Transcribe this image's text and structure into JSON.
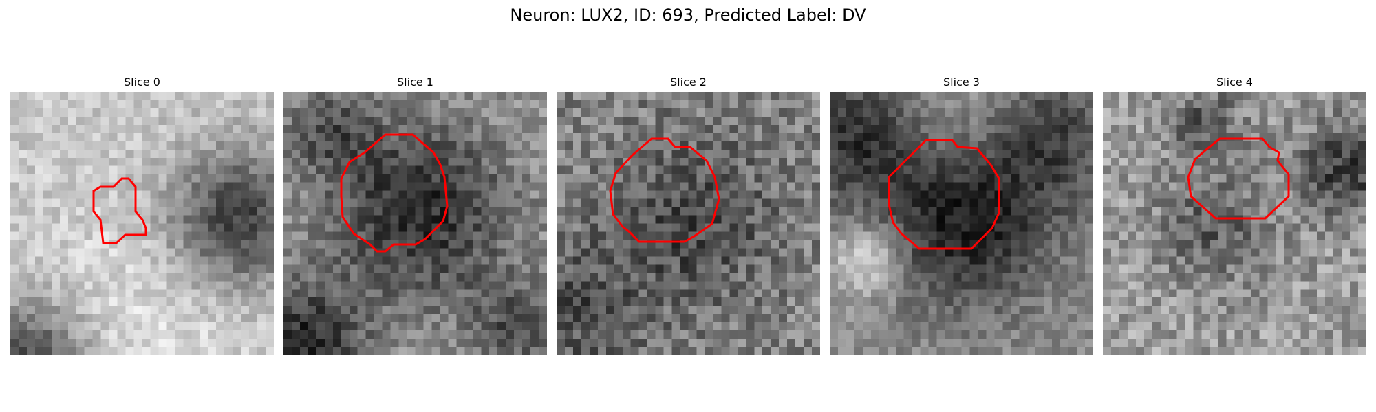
{
  "figure": {
    "title": "Neuron: LUX2, ID: 693, Predicted Label: DV"
  },
  "slices": [
    {
      "title": "Slice 0"
    },
    {
      "title": "Slice 1"
    },
    {
      "title": "Slice 2"
    },
    {
      "title": "Slice 3"
    },
    {
      "title": "Slice 4"
    }
  ],
  "colors": {
    "contour": "#ff0000",
    "background": "#ffffff"
  }
}
